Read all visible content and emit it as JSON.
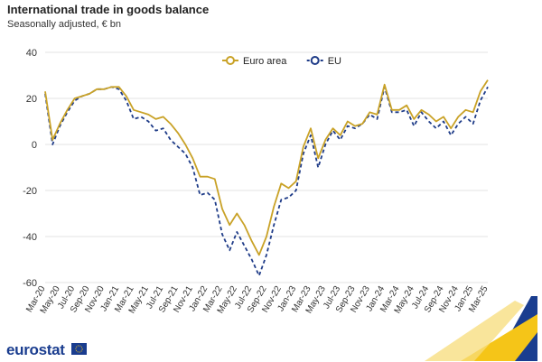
{
  "chart_data": {
    "type": "line",
    "title": "International trade in goods balance",
    "subtitle": "Seasonally adjusted, € bn",
    "xlabel": "",
    "ylabel": "",
    "ylim": [
      -60,
      40
    ],
    "yticks": [
      40,
      20,
      0,
      -20,
      -40,
      -60
    ],
    "grid": true,
    "legend": "top-center",
    "x": [
      "Mar-20",
      "Apr-20",
      "May-20",
      "Jun-20",
      "Jul-20",
      "Aug-20",
      "Sep-20",
      "Oct-20",
      "Nov-20",
      "Dec-20",
      "Jan-21",
      "Feb-21",
      "Mar-21",
      "Apr-21",
      "May-21",
      "Jun-21",
      "Jul-21",
      "Aug-21",
      "Sep-21",
      "Oct-21",
      "Nov-21",
      "Dec-21",
      "Jan-22",
      "Feb-22",
      "Mar-22",
      "Apr-22",
      "May-22",
      "Jun-22",
      "Jul-22",
      "Aug-22",
      "Sep-22",
      "Oct-22",
      "Nov-22",
      "Dec-22",
      "Jan-23",
      "Feb-23",
      "Mar-23",
      "Apr-23",
      "May-23",
      "Jun-23",
      "Jul-23",
      "Aug-23",
      "Sep-23",
      "Oct-23",
      "Nov-23",
      "Dec-23",
      "Jan-24",
      "Feb-24",
      "Mar-24",
      "Apr-24",
      "May-24",
      "Jun-24",
      "Jul-24",
      "Aug-24",
      "Sep-24",
      "Oct-24",
      "Nov-24",
      "Dec-24",
      "Jan-25",
      "Feb-25",
      "Mar-25"
    ],
    "xtick_labels": [
      "Mar-20",
      "May-20",
      "Jul-20",
      "Sep-20",
      "Nov-20",
      "Jan-21",
      "Mar-21",
      "May-21",
      "Jul-21",
      "Sep-21",
      "Nov-21",
      "Jan-22",
      "Mar-22",
      "May-22",
      "Jul-22",
      "Sep-22",
      "Nov-22",
      "Jan-23",
      "Mar-23",
      "May-23",
      "Jul-23",
      "Sep-23",
      "Nov-23",
      "Jan-24",
      "Mar-24",
      "May-24",
      "Jul-24",
      "Sep-24",
      "Nov-24",
      "Jan-25",
      "Mar-25"
    ],
    "series": [
      {
        "name": "Euro area",
        "color": "#c9a227",
        "style": "solid",
        "values": [
          23,
          2,
          9,
          15,
          20,
          21,
          22,
          24,
          24,
          25,
          25,
          21,
          15,
          14,
          13,
          11,
          12,
          9,
          5,
          0,
          -6,
          -14,
          -14,
          -15,
          -28,
          -35,
          -30,
          -35,
          -42,
          -48,
          -40,
          -27,
          -17,
          -19,
          -16,
          -1,
          7,
          -6,
          2,
          7,
          4,
          10,
          8,
          9,
          14,
          13,
          26,
          15,
          15,
          17,
          11,
          15,
          13,
          10,
          12,
          7,
          12,
          15,
          14,
          23,
          28
        ]
      },
      {
        "name": "EU",
        "color": "#1f3c88",
        "style": "dashed",
        "values": [
          22,
          0,
          8,
          14,
          19,
          21,
          22,
          24,
          24,
          25,
          24,
          19,
          11,
          12,
          10,
          6,
          7,
          2,
          -1,
          -4,
          -10,
          -22,
          -21,
          -24,
          -39,
          -46,
          -38,
          -44,
          -50,
          -57,
          -48,
          -35,
          -24,
          -23,
          -20,
          -4,
          4,
          -10,
          0,
          6,
          2,
          8,
          7,
          9,
          13,
          11,
          25,
          14,
          14,
          15,
          8,
          14,
          10,
          7,
          10,
          4,
          9,
          12,
          9,
          19,
          25
        ]
      }
    ]
  },
  "branding": {
    "logo_text": "eurostat",
    "accent_blue": "#1a3d8f",
    "accent_yellow": "#f5c518"
  }
}
